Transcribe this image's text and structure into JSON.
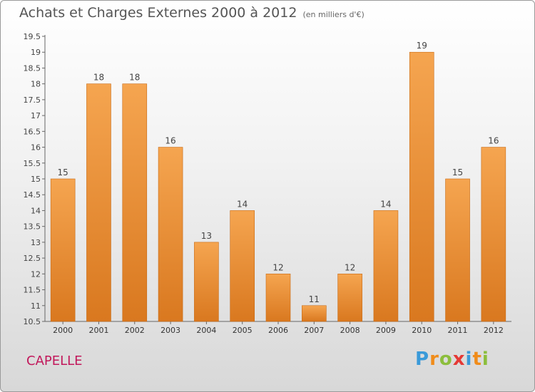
{
  "title": "Achats et Charges Externes 2000 à 2012",
  "unit": "(en milliers d'€)",
  "place": "CAPELLE",
  "logo": "Proxiti",
  "colors": {
    "bar_top": "#f5a550",
    "bar_bottom": "#d9781f",
    "title": "#555555",
    "place": "#c2185b"
  },
  "chart_data": {
    "type": "bar",
    "categories": [
      "2000",
      "2001",
      "2002",
      "2003",
      "2004",
      "2005",
      "2006",
      "2007",
      "2008",
      "2009",
      "2010",
      "2011",
      "2012"
    ],
    "values": [
      15,
      18,
      18,
      16,
      13,
      14,
      12,
      11,
      12,
      14,
      19,
      15,
      16
    ],
    "data_labels": [
      "15",
      "18",
      "18",
      "16",
      "13",
      "14",
      "12",
      "11",
      "12",
      "14",
      "19",
      "15",
      "16"
    ],
    "ylim": [
      10.5,
      19.5
    ],
    "yticks": [
      "10.5",
      "11",
      "11.5",
      "12",
      "12.5",
      "13",
      "13.5",
      "14",
      "14.5",
      "15",
      "15.5",
      "16",
      "16.5",
      "17",
      "17.5",
      "18",
      "18.5",
      "19",
      "19.5"
    ],
    "xlabel": "",
    "ylabel": "",
    "grid": false
  }
}
